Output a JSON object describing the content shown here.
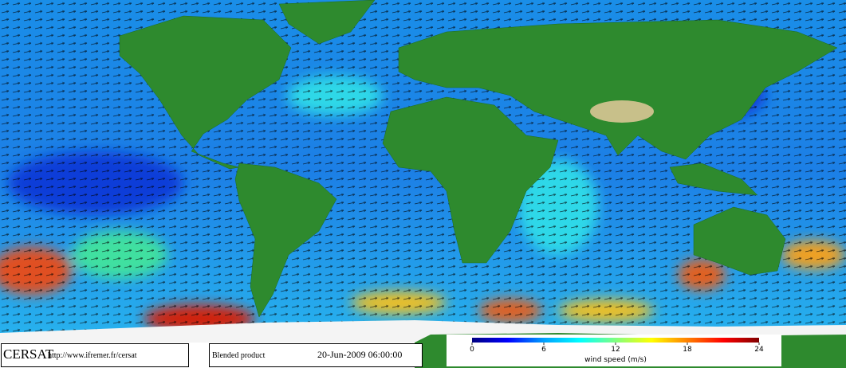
{
  "footer": {
    "logo": "CERSAT",
    "url": "http://www.ifremer.fr/cersat",
    "product": "Blended product",
    "datetime": "20-Jun-2009 06:00:00"
  },
  "colorbar": {
    "label": "wind speed (m/s)",
    "lim": [
      0,
      24
    ],
    "ticks": [
      0,
      6,
      12,
      18,
      24
    ],
    "colors": [
      "#000080",
      "#0000ff",
      "#00a0ff",
      "#00ffff",
      "#80ff80",
      "#ffff00",
      "#ff8000",
      "#ff0000",
      "#800000"
    ]
  }
}
